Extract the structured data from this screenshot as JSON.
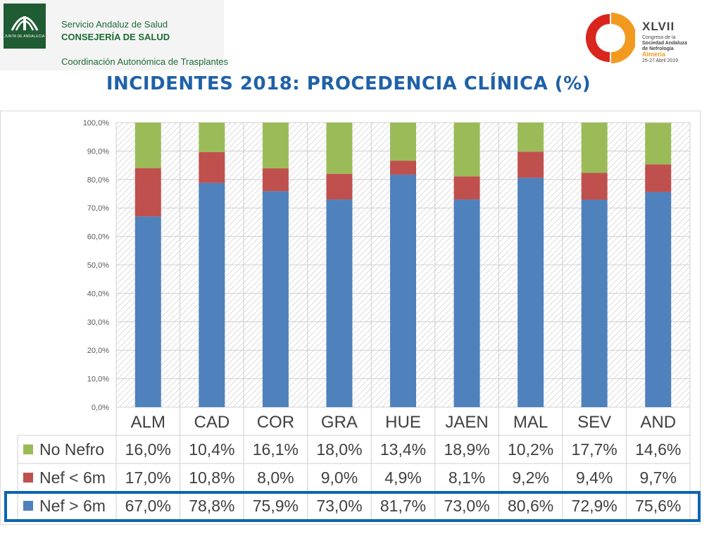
{
  "header": {
    "junta_label": "JUNTA DE ANDALUCIA",
    "org_line1": "Servicio Andaluz de Salud",
    "org_line2": "CONSEJERÍA DE SALUD",
    "org_line3": "Coordinación Autonómica de Trasplantes",
    "congress_roman": "XLVII",
    "congress_line1": "Congreso de la",
    "congress_line2": "Sociedad Andaluza",
    "congress_line3": "de Nefrología",
    "congress_city": "Almería",
    "congress_dates": "25-27 Abril 2019"
  },
  "title": "INCIDENTES 2018: PROCEDENCIA CLÍNICA (%)",
  "colors": {
    "nef_gt": "#4f81bd",
    "nef_lt": "#c0504d",
    "no_nefro": "#9bbb59",
    "title": "#1f61a8",
    "highlight": "#0d64b5"
  },
  "chart_data": {
    "type": "bar",
    "stacked": true,
    "categories": [
      "ALM",
      "CAD",
      "COR",
      "GRA",
      "HUE",
      "JAEN",
      "MAL",
      "SEV",
      "AND"
    ],
    "ylim": [
      0,
      100
    ],
    "y_ticks": [
      "0,0%",
      "10,0%",
      "20,0%",
      "30,0%",
      "40,0%",
      "50,0%",
      "60,0%",
      "70,0%",
      "80,0%",
      "90,0%",
      "100,0%"
    ],
    "grid": true,
    "legend": "data-table-left",
    "series": [
      {
        "name": "Nef > 6m",
        "color": "#4f81bd",
        "values": [
          67.0,
          78.8,
          75.9,
          73.0,
          81.7,
          73.0,
          80.6,
          72.9,
          75.6
        ],
        "labels": [
          "67,0%",
          "78,8%",
          "75,9%",
          "73,0%",
          "81,7%",
          "73,0%",
          "80,6%",
          "72,9%",
          "75,6%"
        ]
      },
      {
        "name": "Nef < 6m",
        "color": "#c0504d",
        "values": [
          17.0,
          10.8,
          8.0,
          9.0,
          4.9,
          8.1,
          9.2,
          9.4,
          9.7
        ],
        "labels": [
          "17,0%",
          "10,8%",
          "8,0%",
          "9,0%",
          "4,9%",
          "8,1%",
          "9,2%",
          "9,4%",
          "9,7%"
        ]
      },
      {
        "name": "No Nefro",
        "color": "#9bbb59",
        "values": [
          16.0,
          10.4,
          16.1,
          18.0,
          13.4,
          18.9,
          10.2,
          17.7,
          14.6
        ],
        "labels": [
          "16,0%",
          "10,4%",
          "16,1%",
          "18,0%",
          "13,4%",
          "18,9%",
          "10,2%",
          "17,7%",
          "14,6%"
        ]
      }
    ],
    "highlighted_series": "Nef > 6m"
  }
}
